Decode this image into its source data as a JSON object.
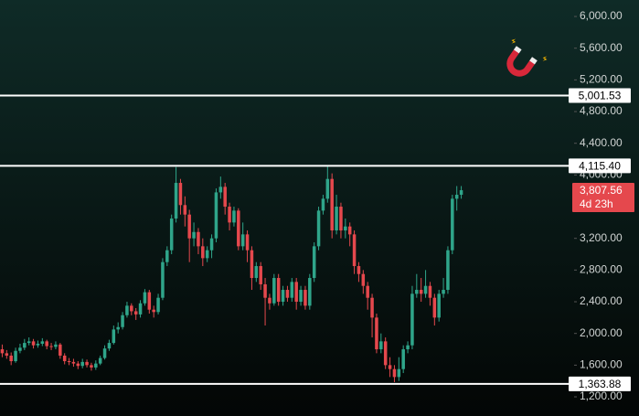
{
  "chart_data": {
    "type": "candlestick",
    "up_color": "#2fa58a",
    "down_color": "#e5484d",
    "open": [
      1800,
      1750,
      1720,
      1650,
      1780,
      1820,
      1880,
      1900,
      1850,
      1870,
      1900,
      1840,
      1830,
      1860,
      1720,
      1650,
      1640,
      1620,
      1590,
      1640,
      1600,
      1570,
      1620,
      1690,
      1810,
      1880,
      2050,
      2080,
      2230,
      2350,
      2280,
      2240,
      2380,
      2520,
      2300,
      2270,
      2450,
      2900,
      3050,
      3450,
      3900,
      3620,
      3500,
      3200,
      3280,
      3100,
      2950,
      3050,
      3200,
      3780,
      3850,
      3600,
      3400,
      3550,
      3100,
      3250,
      3050,
      2700,
      2850,
      2620,
      2450,
      2380,
      2700,
      2400,
      2550,
      2450,
      2650,
      2400,
      2550,
      2350,
      2700,
      3100,
      3550,
      3700,
      3950,
      3300,
      3600,
      3300,
      3350,
      3250,
      2850,
      2750,
      2600,
      2450,
      2200,
      1800,
      1900,
      1600,
      1550,
      1450,
      1550,
      1800,
      1850,
      2500,
      2550,
      2500,
      2600,
      2450,
      2200,
      2500,
      2550,
      3050,
      3700,
      3750
    ],
    "high": [
      1860,
      1790,
      1760,
      1820,
      1870,
      1930,
      1950,
      1930,
      1910,
      1940,
      1920,
      1880,
      1900,
      1880,
      1750,
      1690,
      1680,
      1650,
      1680,
      1670,
      1630,
      1660,
      1720,
      1850,
      1920,
      2100,
      2140,
      2270,
      2400,
      2380,
      2320,
      2420,
      2560,
      2550,
      2350,
      2500,
      2950,
      3100,
      3500,
      4100,
      3950,
      3730,
      3560,
      3400,
      3330,
      3200,
      3100,
      3250,
      3830,
      3980,
      3900,
      3650,
      3600,
      3580,
      3400,
      3300,
      3100,
      2900,
      2900,
      2700,
      2500,
      2750,
      2750,
      2600,
      2600,
      2700,
      2700,
      2600,
      2600,
      2750,
      3150,
      3600,
      3750,
      4110,
      4020,
      3750,
      3650,
      3450,
      3400,
      3300,
      2900,
      2800,
      2650,
      2500,
      2250,
      2000,
      1950,
      1700,
      1600,
      1700,
      1850,
      1900,
      2600,
      2750,
      2700,
      2800,
      2650,
      2500,
      2550,
      2700,
      3100,
      3750,
      3860,
      3860
    ],
    "low": [
      1700,
      1680,
      1600,
      1630,
      1750,
      1790,
      1850,
      1810,
      1820,
      1840,
      1800,
      1790,
      1800,
      1680,
      1610,
      1600,
      1580,
      1550,
      1560,
      1570,
      1530,
      1540,
      1600,
      1670,
      1780,
      1860,
      2000,
      2050,
      2200,
      2230,
      2170,
      2200,
      2350,
      2250,
      2200,
      2240,
      2420,
      2850,
      3000,
      3400,
      3500,
      3350,
      2900,
      3100,
      3000,
      2850,
      2900,
      2950,
      3150,
      3700,
      3500,
      3300,
      3350,
      3050,
      3050,
      2900,
      2550,
      2650,
      2550,
      2100,
      2300,
      2350,
      2350,
      2350,
      2400,
      2400,
      2300,
      2350,
      2300,
      2300,
      2650,
      3050,
      3500,
      3650,
      3200,
      3250,
      3200,
      3200,
      3100,
      2750,
      2650,
      2500,
      2300,
      1950,
      1750,
      1750,
      1550,
      1450,
      1385,
      1400,
      1500,
      1750,
      1800,
      2450,
      2400,
      2450,
      2350,
      2100,
      2150,
      2450,
      2500,
      3000,
      3550,
      3700
    ],
    "close": [
      1750,
      1720,
      1650,
      1780,
      1820,
      1880,
      1900,
      1850,
      1870,
      1900,
      1840,
      1830,
      1860,
      1720,
      1650,
      1640,
      1620,
      1590,
      1640,
      1600,
      1570,
      1620,
      1690,
      1810,
      1880,
      2050,
      2080,
      2230,
      2350,
      2280,
      2240,
      2380,
      2520,
      2300,
      2270,
      2450,
      2900,
      3050,
      3450,
      3900,
      3620,
      3500,
      3200,
      3280,
      3100,
      2950,
      3050,
      3200,
      3780,
      3850,
      3600,
      3400,
      3550,
      3100,
      3250,
      3050,
      2700,
      2850,
      2620,
      2450,
      2380,
      2700,
      2400,
      2550,
      2450,
      2650,
      2400,
      2550,
      2350,
      2700,
      3100,
      3550,
      3700,
      3950,
      3300,
      3600,
      3300,
      3350,
      3250,
      2850,
      2750,
      2600,
      2450,
      2200,
      1800,
      1900,
      1600,
      1550,
      1450,
      1550,
      1800,
      1850,
      2500,
      2550,
      2500,
      2600,
      2450,
      2200,
      2500,
      2550,
      3050,
      3700,
      3750,
      3807.56
    ],
    "ylim": [
      958,
      6208
    ],
    "yticks": [
      {
        "value": 6000,
        "label": "6,000.00"
      },
      {
        "value": 5600,
        "label": "5,600.00"
      },
      {
        "value": 5200,
        "label": "5,200.00"
      },
      {
        "value": 4800,
        "label": "4,800.00"
      },
      {
        "value": 4400,
        "label": "4,400.00"
      },
      {
        "value": 4000,
        "label": "4,000.00"
      },
      {
        "value": 3200,
        "label": "3,200.00"
      },
      {
        "value": 2800,
        "label": "2,800.00"
      },
      {
        "value": 2400,
        "label": "2,400.00"
      },
      {
        "value": 2000,
        "label": "2,000.00"
      },
      {
        "value": 1600,
        "label": "1,600.00"
      },
      {
        "value": 1200,
        "label": "1,200.00"
      }
    ],
    "levels": [
      {
        "value": 5001.53,
        "label": "5,001.53"
      },
      {
        "value": 4115.4,
        "label": "4,115.40"
      },
      {
        "value": 1363.88,
        "label": "1,363.88"
      }
    ],
    "last_price": {
      "value": 3807.56,
      "label": "3,807.56"
    },
    "countdown": "4d 23h"
  }
}
